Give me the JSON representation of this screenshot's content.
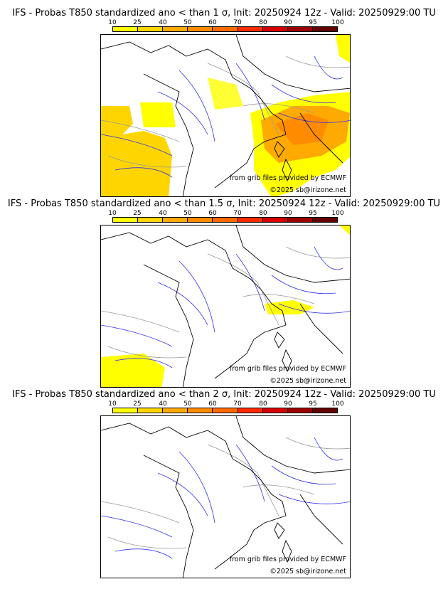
{
  "colorbar": {
    "ticks": [
      "10",
      "25",
      "40",
      "50",
      "60",
      "70",
      "80",
      "90",
      "95",
      "100"
    ],
    "colors": [
      "#ffff00",
      "#ffd500",
      "#ffaa00",
      "#ff8c00",
      "#ff6a00",
      "#ff2a00",
      "#d80000",
      "#9c0000",
      "#640000"
    ]
  },
  "panels": [
    {
      "title": "IFS - Probas T850  standardized ano < than 1 σ, Init: 20250924 12z - Valid: 20250929:00 TU",
      "coverage": "high"
    },
    {
      "title": "IFS - Probas T850  standardized ano < than 1.5 σ, Init: 20250924 12z - Valid: 20250929:00 TU",
      "coverage": "low"
    },
    {
      "title": "IFS - Probas T850  standardized ano < than 2 σ, Init: 20250924 12z - Valid: 20250929:00 TU",
      "coverage": "none"
    }
  ],
  "credits": {
    "source": "from grib files provided by ECMWF",
    "copyright": "©2025 sb@irizone.net"
  }
}
